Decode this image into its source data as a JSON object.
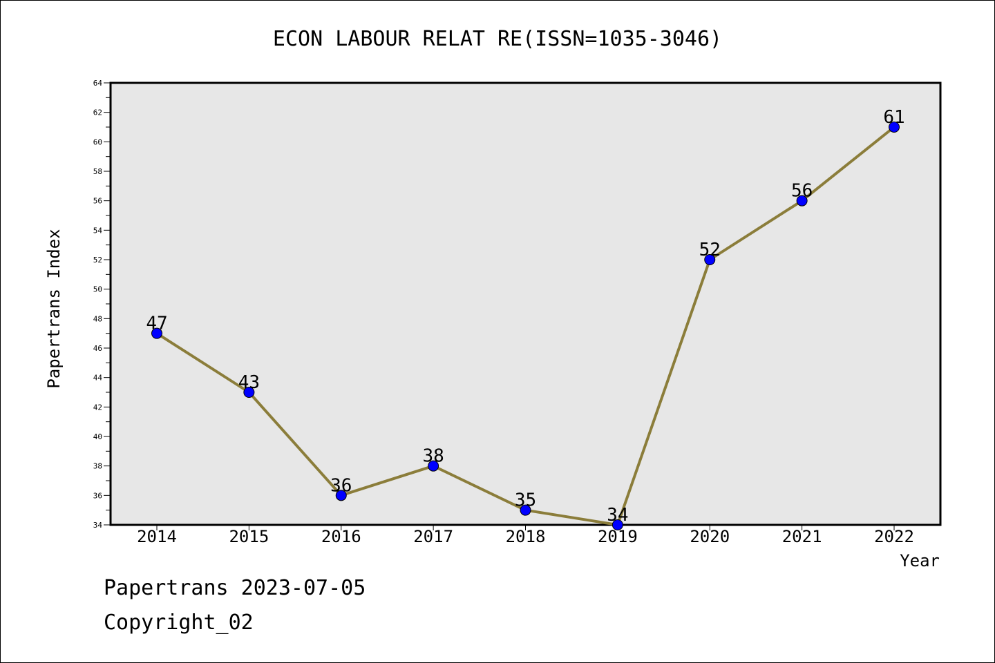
{
  "chart_data": {
    "type": "line",
    "title": "ECON LABOUR RELAT RE(ISSN=1035-3046)",
    "xlabel": "Year",
    "ylabel": "Papertrans Index",
    "categories": [
      "2014",
      "2015",
      "2016",
      "2017",
      "2018",
      "2019",
      "2020",
      "2021",
      "2022"
    ],
    "series": [
      {
        "values": [
          47,
          43,
          36,
          38,
          35,
          34,
          52,
          56,
          61
        ]
      }
    ],
    "ylim": [
      34,
      64
    ],
    "ytick_step": 2,
    "grid": false,
    "data_labels": true,
    "colors": {
      "line": "#8B7D3A",
      "marker": "#0000FF",
      "plot_background": "#E7E7E7",
      "axis": "#000000"
    }
  },
  "footer": {
    "line1": "Papertrans 2023-07-05",
    "line2": "Copyright_02"
  }
}
